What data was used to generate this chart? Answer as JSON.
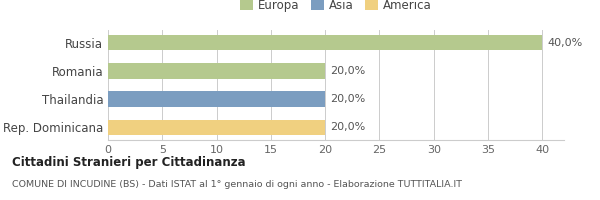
{
  "categories": [
    "Russia",
    "Romania",
    "Thailandia",
    "Rep. Dominicana"
  ],
  "values": [
    40.0,
    20.0,
    20.0,
    20.0
  ],
  "bar_colors": [
    "#b5c98e",
    "#b5c98e",
    "#7b9dc0",
    "#f0d080"
  ],
  "labels": [
    "40,0%",
    "20,0%",
    "20,0%",
    "20,0%"
  ],
  "xlim": [
    0,
    42
  ],
  "xticks": [
    0,
    5,
    10,
    15,
    20,
    25,
    30,
    35,
    40
  ],
  "legend_items": [
    {
      "label": "Europa",
      "color": "#b5c98e"
    },
    {
      "label": "Asia",
      "color": "#7b9dc0"
    },
    {
      "label": "America",
      "color": "#f0d080"
    }
  ],
  "title_bold": "Cittadini Stranieri per Cittadinanza",
  "title_sub": "COMUNE DI INCUDINE (BS) - Dati ISTAT al 1° gennaio di ogni anno - Elaborazione TUTTITALIA.IT",
  "background_color": "#ffffff",
  "grid_color": "#cccccc",
  "bar_height": 0.55,
  "label_fontsize": 8.0,
  "legend_fontsize": 8.5,
  "tick_fontsize": 8.0,
  "ytick_fontsize": 8.5
}
